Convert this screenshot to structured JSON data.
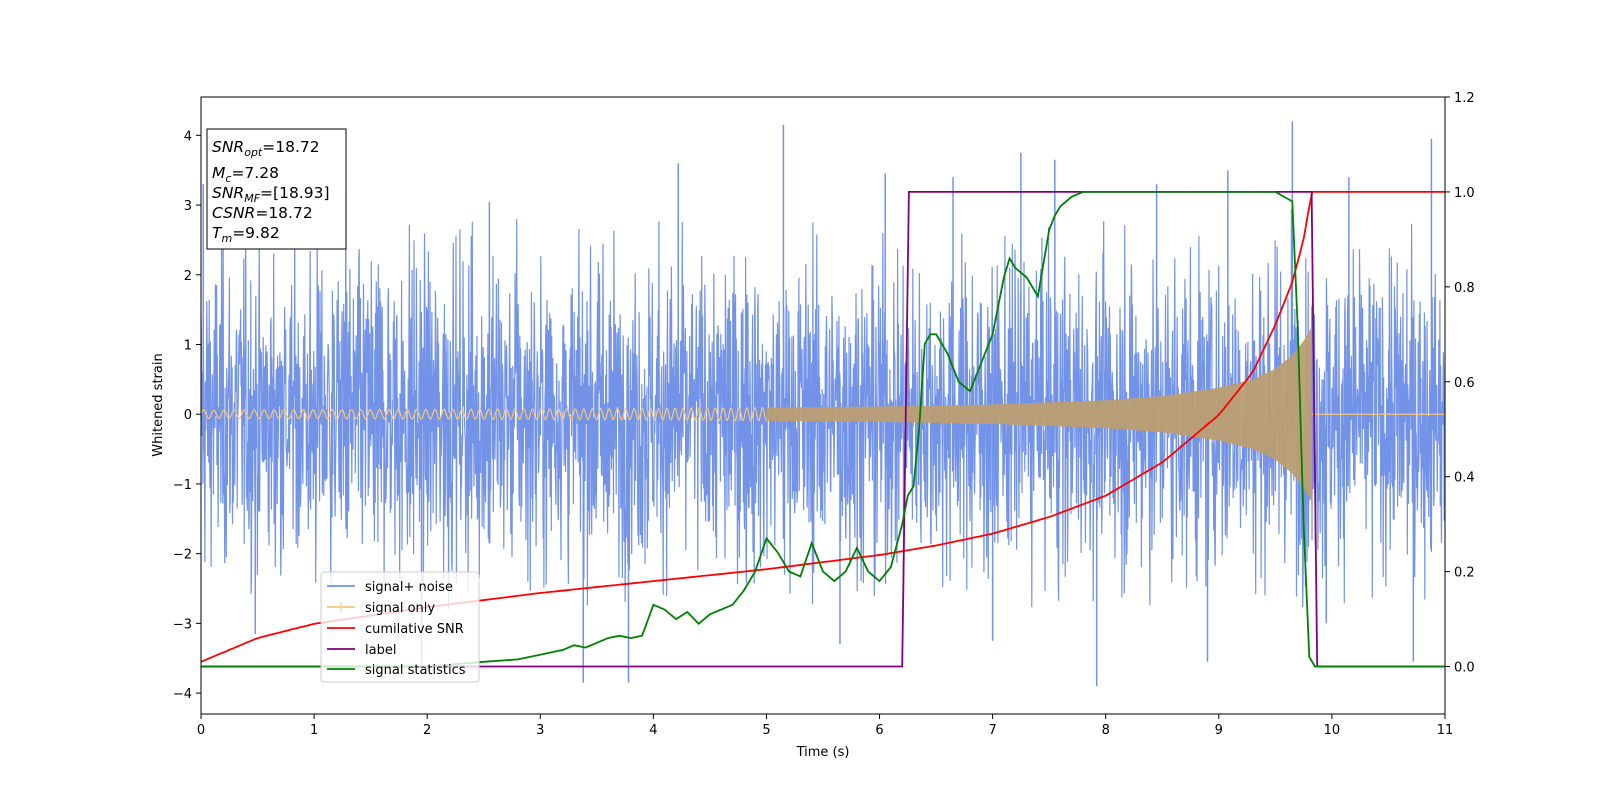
{
  "chart_data": {
    "type": "line",
    "xlabel": "Time (s)",
    "ylabel": "Whitened strain",
    "xlim": [
      0,
      11
    ],
    "ylim": [
      -4.3,
      4.55
    ],
    "y2lim": [
      -0.1,
      1.2
    ],
    "x_ticks": [
      0,
      1,
      2,
      3,
      4,
      5,
      6,
      7,
      8,
      9,
      10,
      11
    ],
    "y_ticks": [
      -4,
      -3,
      -2,
      -1,
      0,
      1,
      2,
      3,
      4
    ],
    "y2_ticks": [
      "0.0",
      "0.2",
      "0.4",
      "0.6",
      "0.8",
      "1.0",
      "1.2"
    ],
    "colors": {
      "noise": "#7393e8",
      "signal": "#f5c67a",
      "overlap": "#bb9e72",
      "snr": "#ff0000",
      "label": "#800080",
      "stat": "#008000"
    },
    "info_box": {
      "snr_opt": {
        "main": "SNR",
        "sub": "opt",
        "value": "=18.72"
      },
      "mc": {
        "main": "M",
        "sub": "c",
        "value": "=7.28"
      },
      "snr_mf": {
        "main": "SNR",
        "sub": "MF",
        "value": "=[18.93]"
      },
      "csnr": {
        "main": "CSNR",
        "value": "=18.72"
      },
      "tm": {
        "main": "T",
        "sub": "m",
        "value": "=9.82"
      }
    },
    "legend": {
      "location": "lower-left",
      "entries": [
        "signal+ noise",
        "signal only",
        "cumilative SNR",
        "label",
        "signal statistics"
      ]
    },
    "series": [
      {
        "name": "signal+ noise",
        "axis": "left",
        "description_range": [
          -3.9,
          4.2
        ],
        "envelope_x": [
          0,
          1,
          2,
          3,
          4,
          5,
          6,
          7,
          8,
          9,
          9.5,
          9.8,
          10,
          11
        ],
        "envelope_amp": [
          2.8,
          2.8,
          2.8,
          2.8,
          2.8,
          2.8,
          2.8,
          2.8,
          2.8,
          2.8,
          2.9,
          3.0,
          2.8,
          2.8
        ],
        "spikes": [
          {
            "x": 0.02,
            "y": 3.3
          },
          {
            "x": 0.48,
            "y": -3.15
          },
          {
            "x": 1.28,
            "y": 3.25
          },
          {
            "x": 1.95,
            "y": -3.7
          },
          {
            "x": 3.38,
            "y": -3.85
          },
          {
            "x": 3.78,
            "y": -3.85
          },
          {
            "x": 4.22,
            "y": 3.6
          },
          {
            "x": 5.15,
            "y": 4.15
          },
          {
            "x": 6.05,
            "y": 3.45
          },
          {
            "x": 6.65,
            "y": 3.4
          },
          {
            "x": 7.25,
            "y": 3.75
          },
          {
            "x": 7.55,
            "y": 3.65
          },
          {
            "x": 7.92,
            "y": -3.9
          },
          {
            "x": 8.45,
            "y": 3.3
          },
          {
            "x": 9.08,
            "y": 3.5
          },
          {
            "x": 9.65,
            "y": 4.2
          },
          {
            "x": 10.15,
            "y": 3.4
          },
          {
            "x": 10.88,
            "y": 3.95
          },
          {
            "x": 10.72,
            "y": -3.55
          },
          {
            "x": 2.55,
            "y": 3.05
          },
          {
            "x": 5.65,
            "y": -3.3
          },
          {
            "x": 8.9,
            "y": -3.55
          },
          {
            "x": 9.95,
            "y": -3.0
          },
          {
            "x": 7.0,
            "y": -3.25
          }
        ]
      },
      {
        "name": "signal only",
        "axis": "left",
        "amplitude_x": [
          0,
          2,
          4,
          6,
          7,
          8,
          8.5,
          9,
          9.3,
          9.5,
          9.65,
          9.75,
          9.82
        ],
        "amplitude_y": [
          0.06,
          0.07,
          0.08,
          0.11,
          0.14,
          0.2,
          0.26,
          0.38,
          0.5,
          0.65,
          0.85,
          1.05,
          1.25
        ],
        "merger_time": 9.82
      },
      {
        "name": "cumilative SNR",
        "axis": "right",
        "x": [
          0,
          0.5,
          1,
          2,
          3,
          4,
          5,
          6,
          6.5,
          7,
          7.5,
          8,
          8.5,
          9,
          9.3,
          9.5,
          9.65,
          9.75,
          9.82,
          10,
          11
        ],
        "y": [
          0.01,
          0.06,
          0.09,
          0.125,
          0.155,
          0.18,
          0.205,
          0.235,
          0.255,
          0.28,
          0.315,
          0.36,
          0.43,
          0.53,
          0.62,
          0.72,
          0.81,
          0.9,
          1.0,
          1.0,
          1.0
        ]
      },
      {
        "name": "label",
        "axis": "right",
        "x": [
          0,
          6.2,
          6.26,
          9.82,
          9.87,
          11
        ],
        "y": [
          0,
          0,
          1,
          1,
          0,
          0
        ]
      },
      {
        "name": "signal statistics",
        "axis": "right",
        "x": [
          0,
          1,
          2,
          2.5,
          2.8,
          3.0,
          3.1,
          3.2,
          3.3,
          3.4,
          3.5,
          3.6,
          3.7,
          3.8,
          3.9,
          4.0,
          4.1,
          4.2,
          4.3,
          4.4,
          4.5,
          4.6,
          4.7,
          4.8,
          4.9,
          5.0,
          5.1,
          5.2,
          5.3,
          5.4,
          5.5,
          5.6,
          5.7,
          5.8,
          5.9,
          6.0,
          6.1,
          6.2,
          6.25,
          6.3,
          6.35,
          6.4,
          6.45,
          6.5,
          6.6,
          6.7,
          6.8,
          6.9,
          7.0,
          7.1,
          7.15,
          7.2,
          7.3,
          7.4,
          7.5,
          7.55,
          7.6,
          7.7,
          7.8,
          8.0,
          8.5,
          9.0,
          9.5,
          9.65,
          9.7,
          9.75,
          9.8,
          9.85,
          10,
          11
        ],
        "y": [
          0.0,
          0.0,
          0.0,
          0.01,
          0.015,
          0.025,
          0.03,
          0.035,
          0.045,
          0.04,
          0.05,
          0.06,
          0.065,
          0.06,
          0.065,
          0.13,
          0.12,
          0.1,
          0.115,
          0.09,
          0.11,
          0.12,
          0.13,
          0.16,
          0.2,
          0.27,
          0.24,
          0.2,
          0.19,
          0.26,
          0.2,
          0.18,
          0.2,
          0.25,
          0.2,
          0.18,
          0.21,
          0.3,
          0.36,
          0.38,
          0.5,
          0.68,
          0.7,
          0.7,
          0.66,
          0.6,
          0.58,
          0.64,
          0.7,
          0.82,
          0.86,
          0.84,
          0.82,
          0.78,
          0.92,
          0.95,
          0.97,
          0.99,
          1.0,
          1.0,
          1.0,
          1.0,
          1.0,
          0.98,
          0.7,
          0.3,
          0.02,
          0.0,
          0.0,
          0.0
        ]
      }
    ]
  }
}
